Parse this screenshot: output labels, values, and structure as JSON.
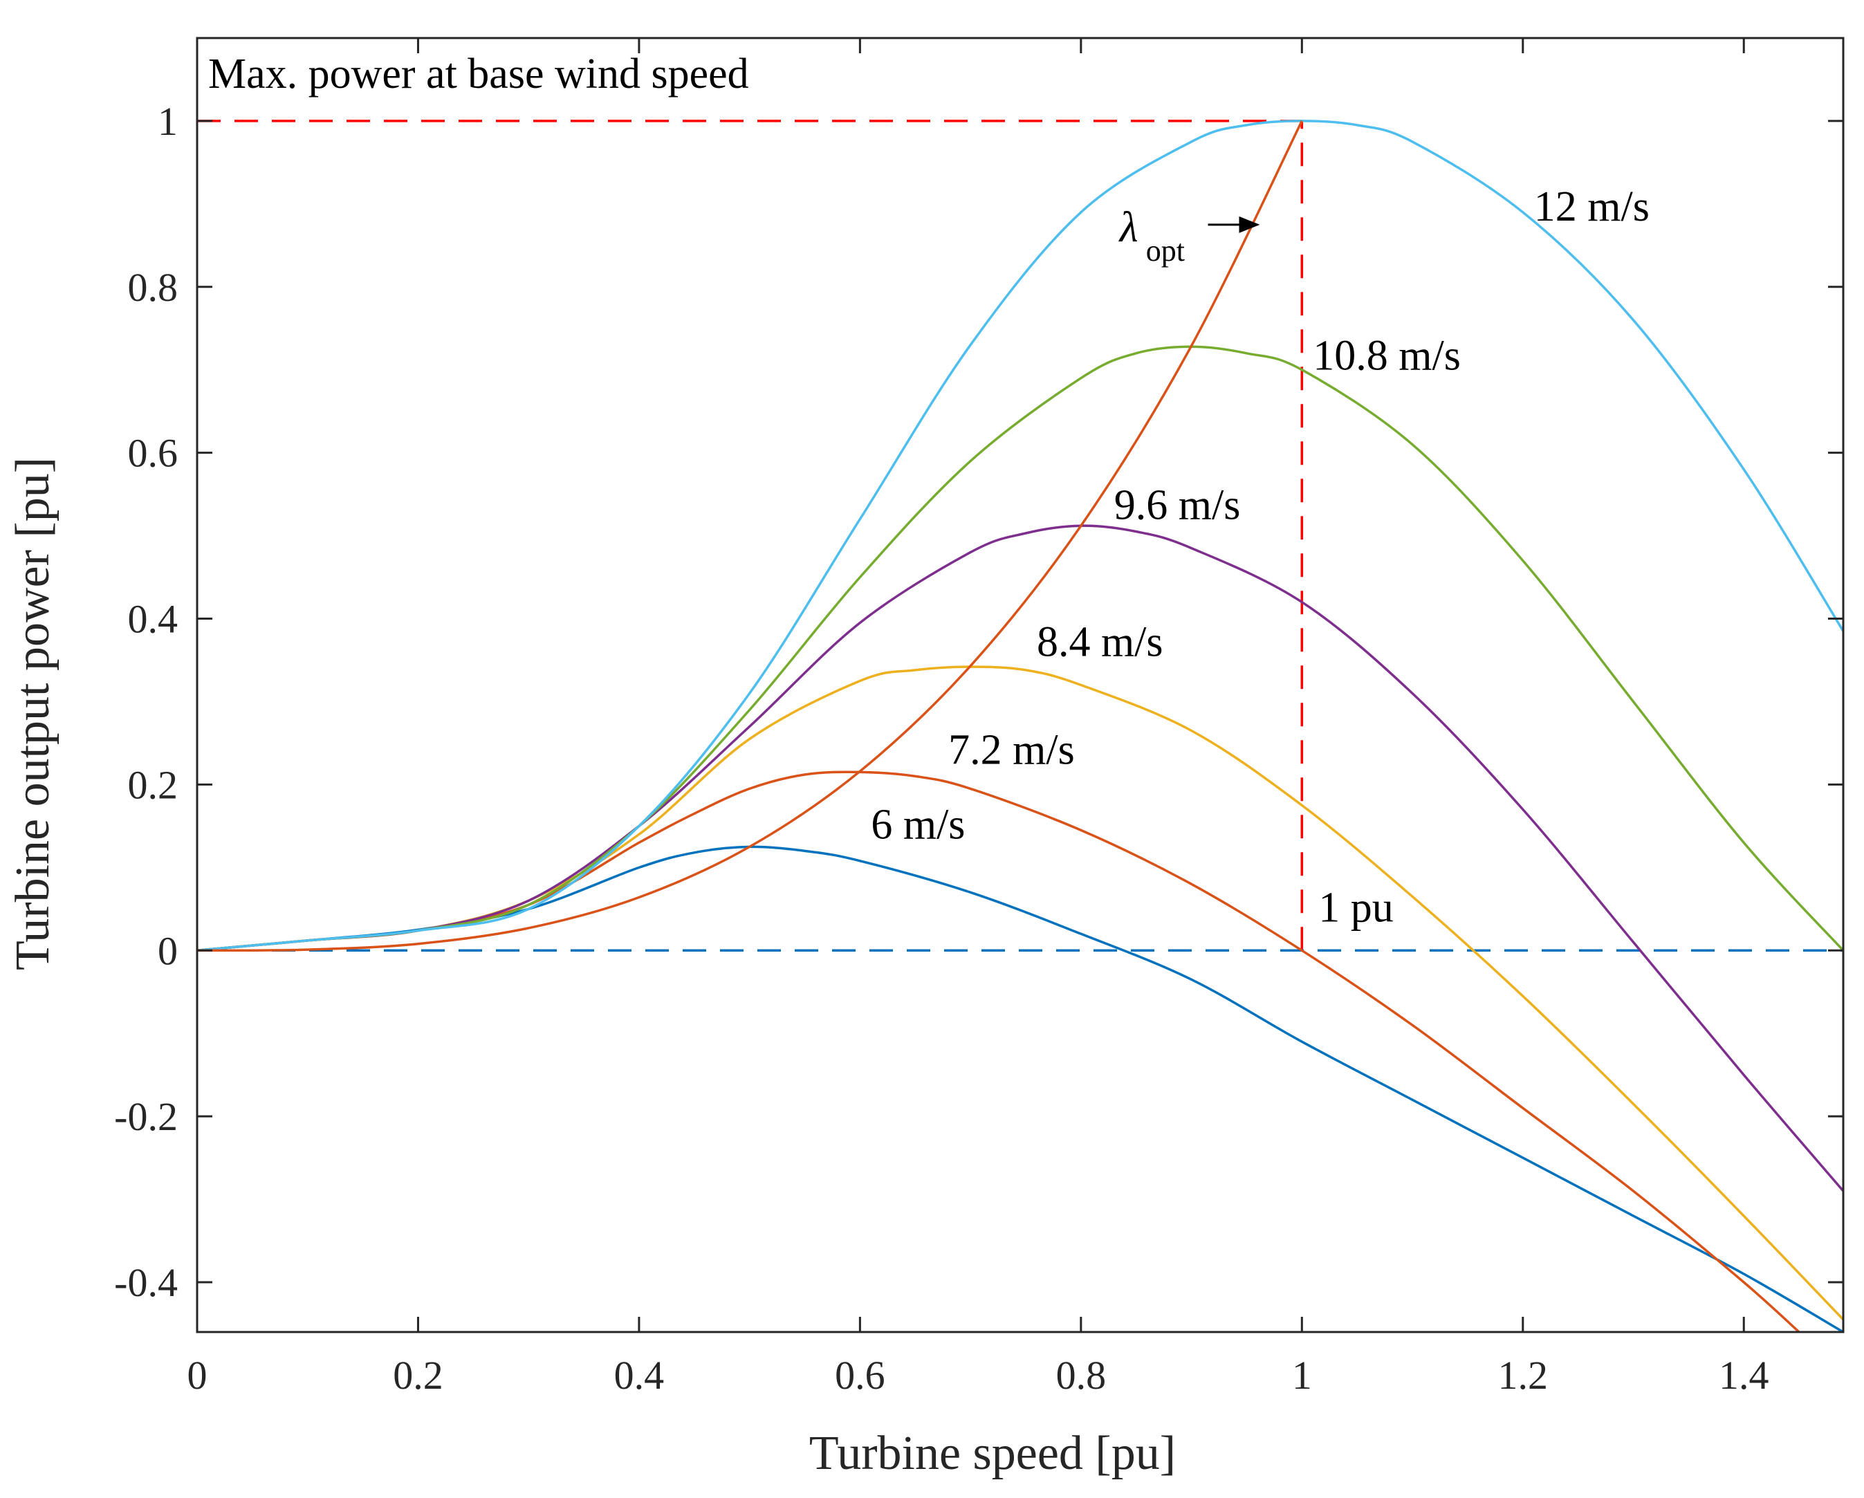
{
  "chart_data": {
    "type": "line",
    "xlabel": "Turbine speed [pu]",
    "ylabel": "Turbine output power [pu]",
    "xlim": [
      0,
      1.49
    ],
    "ylim": [
      -0.46,
      1.1
    ],
    "xticks": [
      0,
      0.2,
      0.4,
      0.6,
      0.8,
      1,
      1.2,
      1.4
    ],
    "xtick_labels": [
      "0",
      "0.2",
      "0.4",
      "0.6",
      "0.8",
      "1",
      "1.2",
      "1.4"
    ],
    "yticks": [
      -0.4,
      -0.2,
      0,
      0.2,
      0.4,
      0.6,
      0.8,
      1
    ],
    "ytick_labels": [
      "-0.4",
      "-0.2",
      "0",
      "0.2",
      "0.4",
      "0.6",
      "0.8",
      "1"
    ],
    "grid": false,
    "box": true,
    "series": [
      {
        "name": "6 m/s",
        "color": "#0072BD",
        "label_x": 0.61,
        "label_y": 0.135,
        "x": [
          0,
          0.1,
          0.2,
          0.3,
          0.4,
          0.45,
          0.5,
          0.55,
          0.6,
          0.7,
          0.8,
          0.9,
          1.0,
          1.1,
          1.2,
          1.3,
          1.4,
          1.49
        ],
        "y": [
          0,
          0.012,
          0.025,
          0.05,
          0.1,
          0.118,
          0.125,
          0.12,
          0.108,
          0.07,
          0.02,
          -0.035,
          -0.11,
          -0.18,
          -0.25,
          -0.32,
          -0.39,
          -0.46
        ]
      },
      {
        "name": "7.2 m/s",
        "color": "#D95319",
        "label_x": 0.68,
        "label_y": 0.225,
        "x": [
          0,
          0.1,
          0.2,
          0.3,
          0.4,
          0.45,
          0.5,
          0.55,
          0.6,
          0.65,
          0.7,
          0.8,
          0.9,
          1.0,
          1.1,
          1.2,
          1.3,
          1.4,
          1.45
        ],
        "y": [
          0,
          0.012,
          0.024,
          0.055,
          0.13,
          0.165,
          0.195,
          0.212,
          0.215,
          0.21,
          0.195,
          0.145,
          0.08,
          0.0,
          -0.09,
          -0.19,
          -0.29,
          -0.4,
          -0.46
        ]
      },
      {
        "name": "8.4 m/s",
        "color": "#EDB120",
        "label_x": 0.76,
        "label_y": 0.355,
        "x": [
          0,
          0.1,
          0.2,
          0.3,
          0.4,
          0.5,
          0.6,
          0.65,
          0.7,
          0.75,
          0.8,
          0.9,
          1.0,
          1.1,
          1.2,
          1.3,
          1.4,
          1.49
        ],
        "y": [
          0,
          0.012,
          0.024,
          0.06,
          0.14,
          0.255,
          0.325,
          0.338,
          0.342,
          0.338,
          0.32,
          0.265,
          0.175,
          0.065,
          -0.055,
          -0.185,
          -0.32,
          -0.445
        ]
      },
      {
        "name": "9.6 m/s",
        "color": "#7E2F8E",
        "label_x": 0.83,
        "label_y": 0.52,
        "x": [
          0,
          0.1,
          0.2,
          0.3,
          0.4,
          0.5,
          0.6,
          0.7,
          0.75,
          0.8,
          0.85,
          0.9,
          1.0,
          1.1,
          1.2,
          1.3,
          1.4,
          1.49
        ],
        "y": [
          0,
          0.012,
          0.024,
          0.06,
          0.15,
          0.27,
          0.395,
          0.48,
          0.503,
          0.512,
          0.505,
          0.485,
          0.42,
          0.31,
          0.17,
          0.01,
          -0.15,
          -0.29
        ]
      },
      {
        "name": "10.8 m/s",
        "color": "#77AC30",
        "label_x": 1.01,
        "label_y": 0.7,
        "x": [
          0,
          0.1,
          0.2,
          0.3,
          0.4,
          0.5,
          0.6,
          0.7,
          0.8,
          0.85,
          0.9,
          0.95,
          1.0,
          1.1,
          1.2,
          1.3,
          1.4,
          1.49
        ],
        "y": [
          0,
          0.012,
          0.024,
          0.055,
          0.15,
          0.29,
          0.45,
          0.59,
          0.69,
          0.72,
          0.728,
          0.72,
          0.7,
          0.61,
          0.47,
          0.3,
          0.13,
          0.0
        ]
      },
      {
        "name": "12 m/s",
        "color": "#4DBEEE",
        "label_x": 1.21,
        "label_y": 0.88,
        "x": [
          0,
          0.1,
          0.2,
          0.3,
          0.4,
          0.5,
          0.6,
          0.7,
          0.8,
          0.9,
          0.95,
          1.0,
          1.05,
          1.1,
          1.2,
          1.3,
          1.4,
          1.49
        ],
        "y": [
          0,
          0.012,
          0.024,
          0.05,
          0.15,
          0.31,
          0.52,
          0.73,
          0.89,
          0.975,
          0.995,
          1.0,
          0.995,
          0.975,
          0.89,
          0.76,
          0.58,
          0.385
        ]
      },
      {
        "name": "optimum",
        "color": "#D95319",
        "label_x": null,
        "label_y": null,
        "x": [
          0,
          0.1,
          0.2,
          0.3,
          0.4,
          0.5,
          0.6,
          0.7,
          0.8,
          0.9,
          1.0
        ],
        "y": [
          0,
          0.001,
          0.008,
          0.027,
          0.064,
          0.125,
          0.216,
          0.343,
          0.512,
          0.729,
          1.0
        ]
      }
    ],
    "reference_lines": [
      {
        "kind": "horizontal",
        "y": 1,
        "x_from": 0,
        "x_to": 1,
        "color": "#FF0000",
        "dashed": true
      },
      {
        "kind": "vertical",
        "x": 1,
        "y_from": 0,
        "y_to": 1,
        "color": "#FF0000",
        "dashed": true
      },
      {
        "kind": "horizontal",
        "y": 0,
        "x_from": 0,
        "x_to": 1.49,
        "color": "#0072BD",
        "dashed": true
      }
    ],
    "annotations": {
      "max_power": {
        "text": "Max. power at base wind speed",
        "x": 0.01,
        "y": 1.04
      },
      "one_pu": {
        "text": "1 pu",
        "x": 1.015,
        "y": 0.035
      },
      "lambda": {
        "symbol": "λ",
        "subscript": "opt",
        "x": 0.835,
        "y": 0.855,
        "arrow_from": [
          0.915,
          0.875
        ],
        "arrow_to": [
          0.96,
          0.875
        ]
      }
    }
  }
}
